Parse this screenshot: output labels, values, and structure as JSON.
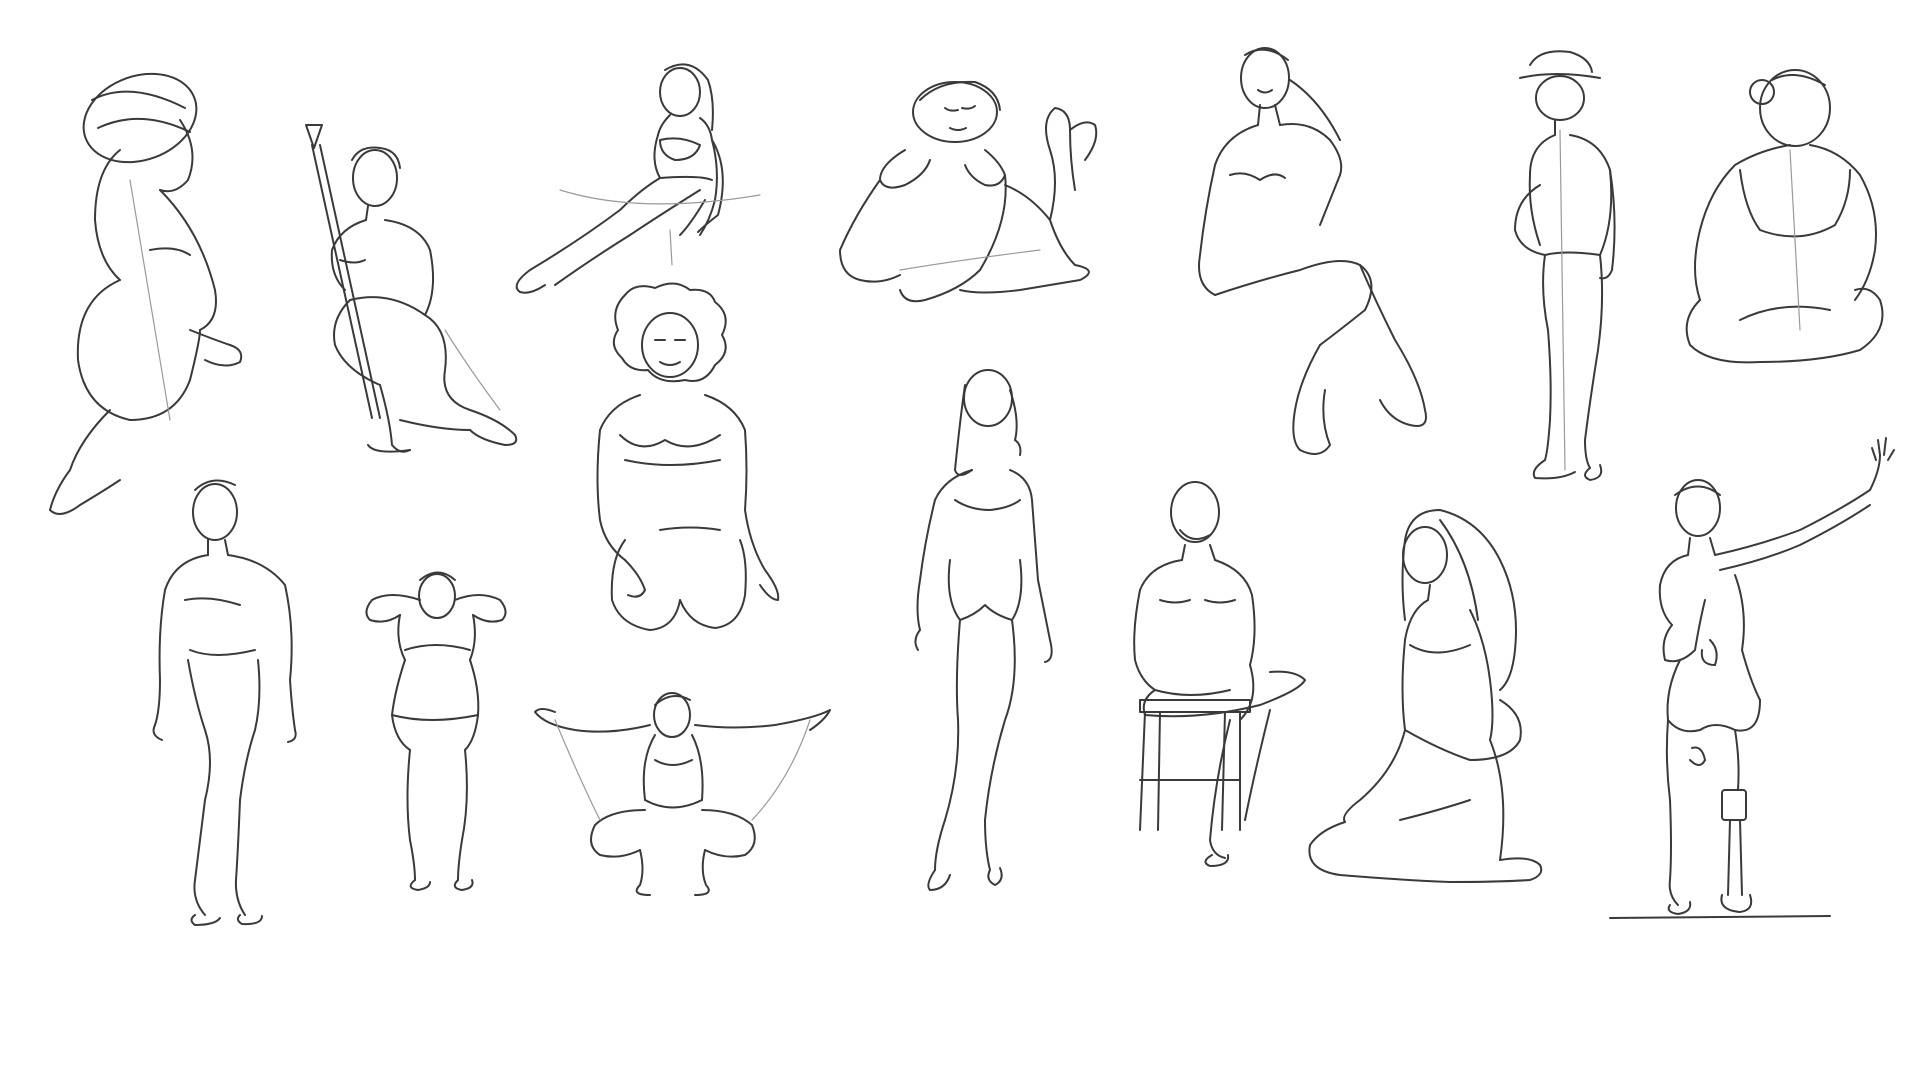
{
  "canvas": {
    "background": "#ffffff",
    "stroke_color": "#3a3a3a",
    "guide_color": "#9a9a9a"
  },
  "figures": [
    {
      "id": 1,
      "pose": "seated-from-behind-turban"
    },
    {
      "id": 2,
      "pose": "kneeling-with-brush-staff"
    },
    {
      "id": 3,
      "pose": "reclining-seated-leaning-back"
    },
    {
      "id": 4,
      "pose": "lying-prone-chin-on-hands"
    },
    {
      "id": 5,
      "pose": "seated-crossed-legs-hand-at-ear"
    },
    {
      "id": 6,
      "pose": "standing-side-view-bucket-hat"
    },
    {
      "id": 7,
      "pose": "seated-back-view-hair-bun"
    },
    {
      "id": 8,
      "pose": "standing-male-walking"
    },
    {
      "id": 9,
      "pose": "standing-flexing-arms"
    },
    {
      "id": 10,
      "pose": "kneeling-curly-hair"
    },
    {
      "id": 11,
      "pose": "squatting-arms-outstretched"
    },
    {
      "id": 12,
      "pose": "standing-back-view-long-hair"
    },
    {
      "id": 13,
      "pose": "seated-on-stool-bald-man"
    },
    {
      "id": 14,
      "pose": "kneeling-sitting-long-hair"
    },
    {
      "id": 15,
      "pose": "standing-arm-raised-prosthetic-leg"
    }
  ]
}
